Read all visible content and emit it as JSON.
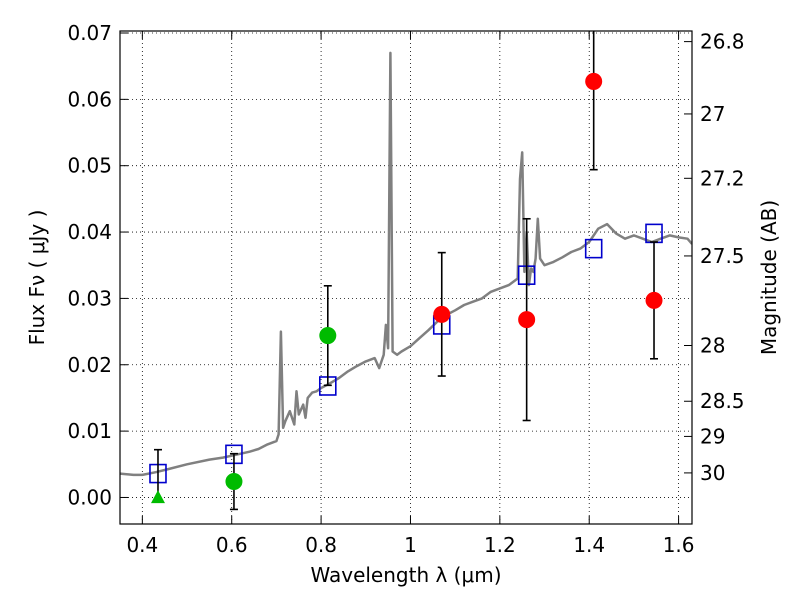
{
  "chart_data": {
    "type": "scatter",
    "title": "",
    "xlabel": "Wavelength  λ (μm)",
    "ylabel": "Flux  Fν  ( μJy )",
    "ylabel_right": "Magnitude (AB)",
    "xlim": [
      0.35,
      1.63
    ],
    "ylim": [
      -0.004,
      0.0703
    ],
    "grid": true,
    "x_ticks": [
      0.4,
      0.6,
      0.8,
      1.0,
      1.2,
      1.4,
      1.6
    ],
    "x_tick_labels": [
      "0.4",
      "0.6",
      "0.8",
      "1",
      "1.2",
      "1.4",
      "1.6"
    ],
    "y_ticks": [
      0.0,
      0.01,
      0.02,
      0.03,
      0.04,
      0.05,
      0.06,
      0.07
    ],
    "y_tick_labels": [
      "0.00",
      "0.01",
      "0.02",
      "0.03",
      "0.04",
      "0.05",
      "0.06",
      "0.07"
    ],
    "right_ticks": [
      {
        "flux": 0.0687,
        "label": "26.8"
      },
      {
        "flux": 0.0578,
        "label": "27"
      },
      {
        "flux": 0.0481,
        "label": "27.2"
      },
      {
        "flux": 0.0364,
        "label": "27.5"
      },
      {
        "flux": 0.0229,
        "label": "28"
      },
      {
        "flux": 0.0145,
        "label": "28.5"
      },
      {
        "flux": 0.0092,
        "label": "29"
      },
      {
        "flux": 0.0037,
        "label": "30"
      }
    ],
    "series": [
      {
        "name": "model-spectrum",
        "style": "line",
        "color": "#808080",
        "x": [
          0.35,
          0.38,
          0.4,
          0.43,
          0.46,
          0.5,
          0.55,
          0.58,
          0.6,
          0.62,
          0.64,
          0.66,
          0.68,
          0.7,
          0.705,
          0.71,
          0.715,
          0.72,
          0.73,
          0.74,
          0.745,
          0.75,
          0.76,
          0.765,
          0.77,
          0.78,
          0.79,
          0.8,
          0.82,
          0.84,
          0.86,
          0.88,
          0.9,
          0.92,
          0.93,
          0.94,
          0.945,
          0.95,
          0.955,
          0.96,
          0.97,
          0.98,
          1.0,
          1.02,
          1.04,
          1.06,
          1.08,
          1.1,
          1.12,
          1.14,
          1.16,
          1.18,
          1.2,
          1.22,
          1.24,
          1.245,
          1.25,
          1.255,
          1.26,
          1.265,
          1.27,
          1.275,
          1.28,
          1.285,
          1.29,
          1.3,
          1.32,
          1.34,
          1.36,
          1.38,
          1.4,
          1.42,
          1.44,
          1.46,
          1.48,
          1.5,
          1.52,
          1.54,
          1.56,
          1.58,
          1.6,
          1.62,
          1.63
        ],
        "y": [
          0.0036,
          0.0034,
          0.0034,
          0.0038,
          0.0043,
          0.005,
          0.0057,
          0.006,
          0.0063,
          0.0066,
          0.0069,
          0.0073,
          0.008,
          0.0085,
          0.0095,
          0.025,
          0.0105,
          0.0115,
          0.013,
          0.011,
          0.016,
          0.0125,
          0.014,
          0.012,
          0.015,
          0.0158,
          0.016,
          0.0165,
          0.0172,
          0.018,
          0.019,
          0.0198,
          0.0205,
          0.021,
          0.0195,
          0.0215,
          0.026,
          0.0225,
          0.067,
          0.022,
          0.0215,
          0.022,
          0.0228,
          0.024,
          0.0252,
          0.0265,
          0.0275,
          0.0282,
          0.029,
          0.0295,
          0.03,
          0.031,
          0.0315,
          0.032,
          0.033,
          0.048,
          0.052,
          0.034,
          0.04,
          0.032,
          0.0345,
          0.034,
          0.036,
          0.042,
          0.036,
          0.035,
          0.0355,
          0.0362,
          0.037,
          0.0375,
          0.0385,
          0.0405,
          0.0412,
          0.0398,
          0.039,
          0.0395,
          0.039,
          0.0385,
          0.039,
          0.0395,
          0.0392,
          0.039,
          0.0382
        ]
      },
      {
        "name": "model-photometry",
        "style": "open-square",
        "color": "#0000cc",
        "x": [
          0.435,
          0.605,
          0.815,
          1.07,
          1.26,
          1.41,
          1.545
        ],
        "y": [
          0.0036,
          0.0065,
          0.0168,
          0.026,
          0.0335,
          0.0375,
          0.0398
        ]
      },
      {
        "name": "ground-based-photometry",
        "style": "filled-circle",
        "color": "#00bb00",
        "x": [
          0.605,
          0.815
        ],
        "y": [
          0.0024,
          0.0244
        ],
        "yerr": [
          0.0042,
          0.0075
        ]
      },
      {
        "name": "detection-limit",
        "style": "filled-triangle",
        "color": "#00bb00",
        "x": [
          0.435
        ],
        "y": [
          -0.0001
        ],
        "yerr_upper": [
          0.0073
        ]
      },
      {
        "name": "hst-photometry",
        "style": "filled-circle",
        "color": "#ff0000",
        "x": [
          1.07,
          1.26,
          1.41,
          1.545
        ],
        "y": [
          0.0276,
          0.0268,
          0.0627,
          0.0297
        ],
        "yerr": [
          0.0093,
          0.0152,
          0.0133,
          0.0088
        ]
      }
    ]
  }
}
